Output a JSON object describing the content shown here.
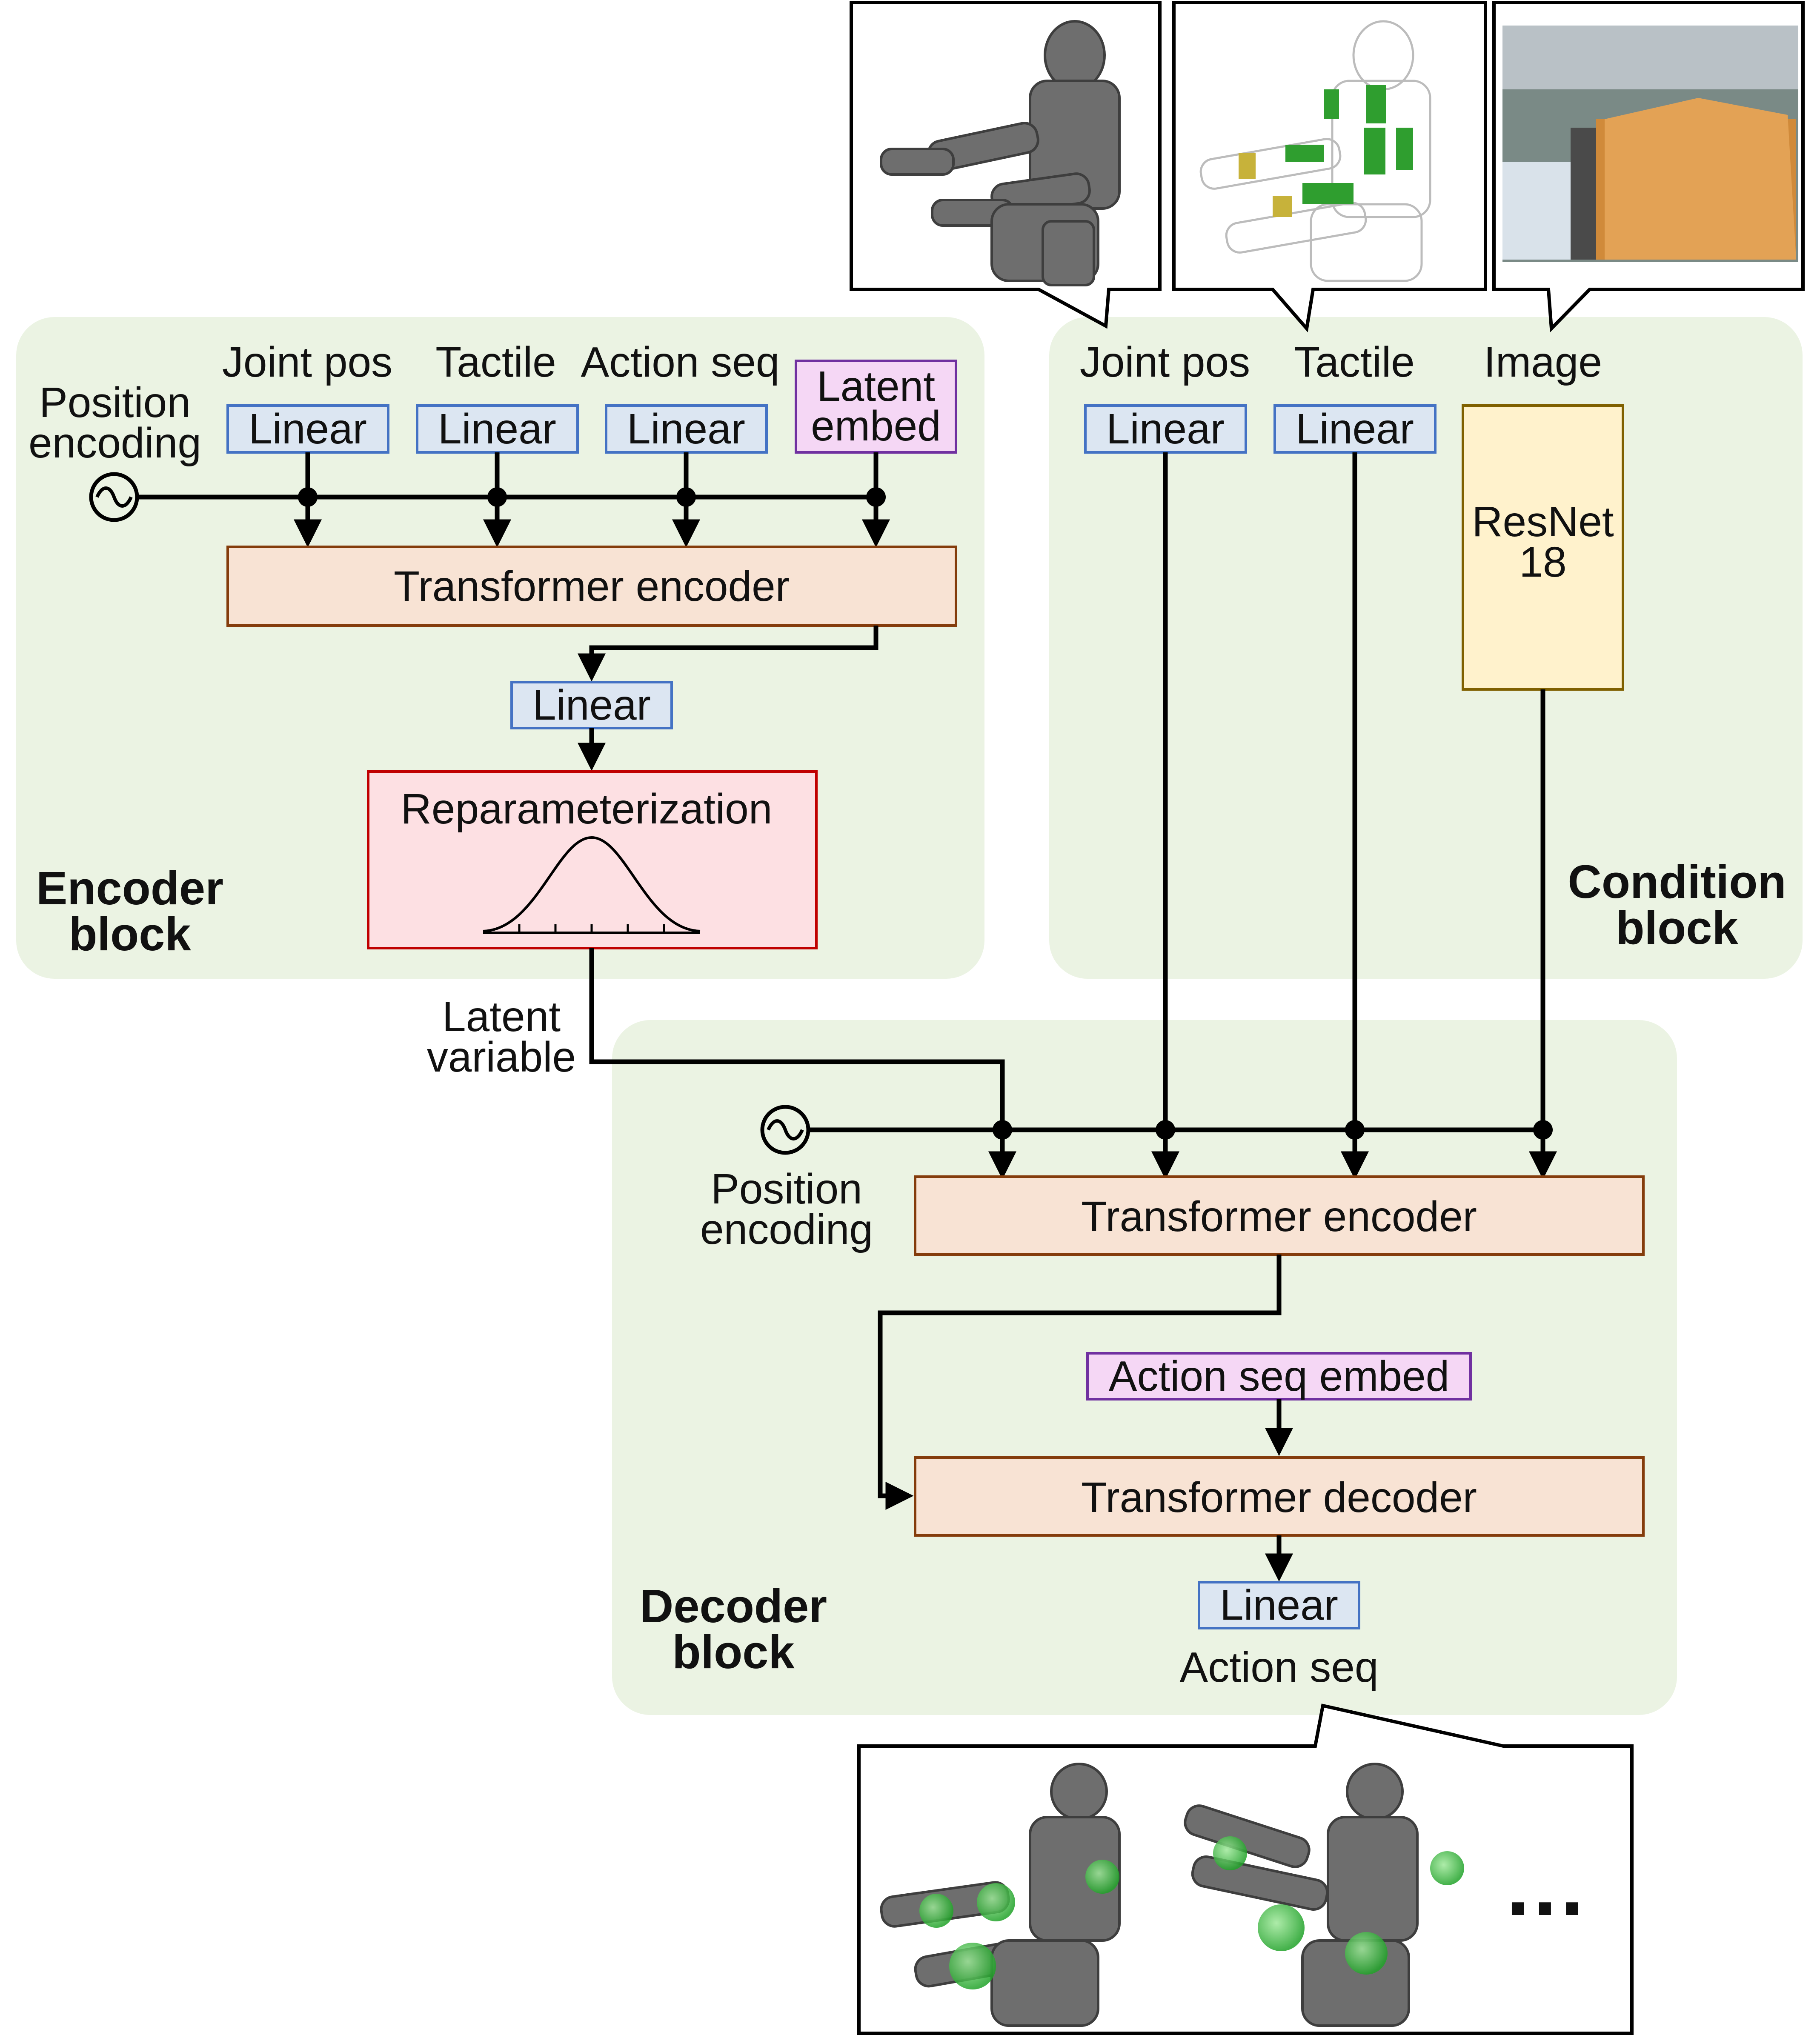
{
  "encoder_block": {
    "title_line1": "Encoder",
    "title_line2": "block",
    "position_encoding_line1": "Position",
    "position_encoding_line2": "encoding",
    "inputs": [
      {
        "label": "Joint pos",
        "box": "Linear"
      },
      {
        "label": "Tactile",
        "box": "Linear"
      },
      {
        "label": "Action seq",
        "box": "Linear"
      }
    ],
    "latent_embed_line1": "Latent",
    "latent_embed_line2": "embed",
    "transformer": "Transformer encoder",
    "linear": "Linear",
    "reparam": "Reparameterization"
  },
  "latent_variable_line1": "Latent",
  "latent_variable_line2": "variable",
  "condition_block": {
    "title_line1": "Condition",
    "title_line2": "block",
    "inputs": [
      {
        "label": "Joint pos",
        "box": "Linear"
      },
      {
        "label": "Tactile",
        "box": "Linear"
      }
    ],
    "image_label": "Image",
    "resnet_line1": "ResNet",
    "resnet_line2": "18"
  },
  "decoder_block": {
    "title_line1": "Decoder",
    "title_line2": "block",
    "position_encoding_line1": "Position",
    "position_encoding_line2": "encoding",
    "transformer_encoder": "Transformer encoder",
    "action_seq_embed": "Action seq embed",
    "transformer_decoder": "Transformer decoder",
    "linear": "Linear",
    "output_label": "Action seq"
  },
  "ellipsis": "…",
  "colors": {
    "block_bg": "#ebf3e3",
    "linear_fill": "#dce6f2",
    "linear_stroke": "#4472c4",
    "embed_fill": "#f5d7f5",
    "embed_stroke": "#7030a0",
    "transformer_fill": "#f8e3d4",
    "transformer_stroke": "#843c0c",
    "reparam_fill": "#fde0e3",
    "reparam_stroke": "#c00000",
    "resnet_fill": "#fff2cc",
    "resnet_stroke": "#7f6000"
  }
}
